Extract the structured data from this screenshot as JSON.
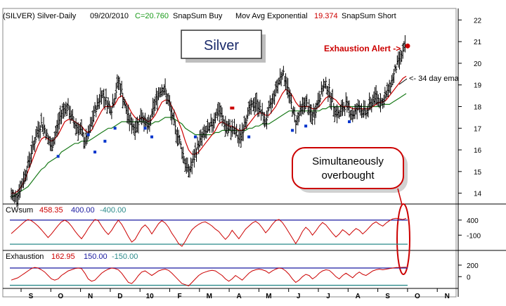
{
  "header": {
    "symbol": "(SILVER) Silver-Daily",
    "date": "09/20/2010",
    "close": "C=20.760",
    "study1": "SnapSum Buy",
    "study2": "Mov Avg Exponential",
    "ema_value": "19.374",
    "study3": "SnapSum Short"
  },
  "title_box": {
    "text": "Silver"
  },
  "annotations": {
    "exhaustion_alert": "Exhaustion Alert ->",
    "ema_label": "<- 34 day ema",
    "callout_line1": "Simultaneously",
    "callout_line2": "overbought"
  },
  "colors": {
    "price_bars": "#000000",
    "ema_fast": "#cc0000",
    "ema_34": "#1a7a1a",
    "buy_marker": "#0033cc",
    "indicator_line": "#cc0000",
    "upper_band": "#1a1aa0",
    "lower_band": "#2a8a8a",
    "alert_text": "#cc0000",
    "callout_border": "#cc0000"
  },
  "chart_data": [
    {
      "type": "ohlc",
      "x_start": "2010-09-01",
      "ylim": [
        13.5,
        22.5
      ],
      "y_ticks": [
        14,
        15,
        16,
        17,
        18,
        19,
        20,
        21,
        22
      ],
      "months": [
        "S",
        "O",
        "N",
        "D",
        "10",
        "F",
        "M",
        "A",
        "M",
        "J",
        "J",
        "A",
        "S",
        "O",
        "N"
      ],
      "close_path": [
        13.9,
        13.8,
        14.0,
        14.3,
        14.8,
        15.3,
        15.9,
        16.4,
        16.9,
        17.2,
        17.0,
        16.5,
        16.1,
        16.6,
        17.2,
        17.7,
        18.0,
        17.9,
        17.5,
        17.2,
        17.0,
        16.8,
        16.4,
        16.6,
        17.2,
        17.8,
        18.2,
        18.6,
        18.4,
        18.1,
        17.9,
        18.5,
        19.2,
        18.7,
        18.0,
        17.5,
        17.2,
        17.0,
        17.3,
        17.6,
        17.3,
        17.0,
        17.6,
        18.2,
        18.6,
        18.9,
        18.7,
        18.2,
        17.6,
        17.0,
        16.6,
        16.0,
        15.4,
        15.0,
        15.3,
        15.8,
        16.3,
        16.6,
        16.8,
        16.9,
        17.2,
        17.6,
        17.8,
        17.5,
        17.1,
        16.9,
        17.0,
        16.8,
        16.5,
        16.8,
        17.4,
        17.8,
        18.0,
        18.2,
        18.0,
        17.6,
        17.3,
        17.8,
        18.3,
        18.8,
        19.2,
        19.6,
        19.2,
        18.6,
        17.9,
        17.3,
        17.6,
        18.0,
        18.2,
        17.8,
        17.5,
        17.9,
        18.4,
        18.8,
        19.0,
        18.7,
        18.2,
        17.8,
        17.6,
        17.9,
        18.1,
        17.9,
        17.6,
        17.8,
        18.0,
        17.8,
        17.7,
        18.0,
        18.3,
        18.5,
        18.3,
        18.2,
        18.5,
        18.9,
        19.3,
        19.8,
        20.2,
        20.5,
        20.8
      ],
      "ema_fast": [
        14.0,
        14.0,
        14.1,
        14.3,
        14.6,
        15.0,
        15.4,
        15.8,
        16.2,
        16.5,
        16.6,
        16.5,
        16.4,
        16.5,
        16.7,
        17.0,
        17.3,
        17.4,
        17.4,
        17.3,
        17.2,
        17.1,
        16.9,
        16.8,
        16.9,
        17.2,
        17.5,
        17.8,
        18.0,
        18.0,
        18.0,
        18.1,
        18.4,
        18.5,
        18.3,
        18.0,
        17.7,
        17.5,
        17.4,
        17.5,
        17.4,
        17.3,
        17.4,
        17.6,
        17.9,
        18.2,
        18.3,
        18.3,
        18.0,
        17.7,
        17.3,
        16.9,
        16.4,
        16.0,
        15.8,
        15.8,
        15.9,
        16.1,
        16.3,
        16.5,
        16.7,
        16.9,
        17.2,
        17.3,
        17.2,
        17.1,
        17.1,
        17.0,
        16.9,
        16.9,
        17.0,
        17.2,
        17.4,
        17.6,
        17.7,
        17.7,
        17.6,
        17.6,
        17.8,
        18.0,
        18.3,
        18.6,
        18.8,
        18.7,
        18.5,
        18.2,
        18.0,
        18.0,
        18.0,
        18.0,
        17.9,
        17.9,
        18.0,
        18.2,
        18.4,
        18.5,
        18.4,
        18.3,
        18.1,
        18.0,
        18.0,
        18.0,
        17.9,
        17.9,
        17.9,
        17.9,
        17.9,
        17.9,
        18.0,
        18.1,
        18.2,
        18.2,
        18.3,
        18.5,
        18.7,
        18.9,
        19.1,
        19.3,
        19.4
      ],
      "ema_34": [
        13.8,
        13.9,
        14.0,
        14.1,
        14.2,
        14.3,
        14.5,
        14.7,
        14.9,
        15.1,
        15.2,
        15.4,
        15.5,
        15.6,
        15.7,
        15.9,
        16.0,
        16.1,
        16.2,
        16.3,
        16.3,
        16.4,
        16.4,
        16.4,
        16.5,
        16.6,
        16.7,
        16.8,
        16.9,
        17.0,
        17.0,
        17.1,
        17.2,
        17.3,
        17.3,
        17.3,
        17.3,
        17.3,
        17.3,
        17.3,
        17.3,
        17.2,
        17.2,
        17.3,
        17.3,
        17.4,
        17.5,
        17.5,
        17.5,
        17.4,
        17.3,
        17.2,
        17.0,
        16.9,
        16.8,
        16.7,
        16.7,
        16.7,
        16.7,
        16.7,
        16.7,
        16.8,
        16.8,
        16.9,
        16.9,
        16.9,
        16.9,
        16.9,
        16.9,
        16.9,
        16.9,
        17.0,
        17.0,
        17.1,
        17.1,
        17.2,
        17.2,
        17.2,
        17.3,
        17.4,
        17.5,
        17.6,
        17.7,
        17.8,
        17.8,
        17.8,
        17.8,
        17.8,
        17.8,
        17.8,
        17.8,
        17.8,
        17.8,
        17.9,
        17.9,
        18.0,
        18.0,
        18.0,
        18.0,
        18.0,
        18.0,
        18.0,
        18.0,
        18.0,
        18.0,
        18.0,
        18.0,
        18.0,
        18.0,
        18.0,
        18.0,
        18.1,
        18.1,
        18.1,
        18.2,
        18.3,
        18.4,
        18.5,
        18.6
      ],
      "buy_markers": [
        {
          "index": 14,
          "value": 15.7
        },
        {
          "index": 23,
          "value": 16.7
        },
        {
          "index": 25,
          "value": 15.9
        },
        {
          "index": 28,
          "value": 16.4
        },
        {
          "index": 31,
          "value": 17.0
        },
        {
          "index": 40,
          "value": 17.0
        },
        {
          "index": 42,
          "value": 16.6
        },
        {
          "index": 55,
          "value": 16.6
        },
        {
          "index": 71,
          "value": 16.6
        },
        {
          "index": 84,
          "value": 16.9
        },
        {
          "index": 88,
          "value": 17.1
        },
        {
          "index": 101,
          "value": 17.3
        }
      ],
      "short_markers": [
        {
          "index": 66,
          "value": 17.9
        }
      ],
      "alert_marker": {
        "index": 118,
        "value": 20.8
      }
    },
    {
      "type": "line",
      "name": "CWsum",
      "last_value": "458.35",
      "upper_band": "400.00",
      "lower_band": "-400.00",
      "y_ticks": [
        400,
        -100
      ],
      "values": [
        -50,
        50,
        150,
        250,
        350,
        420,
        380,
        300,
        200,
        80,
        -50,
        -180,
        -60,
        80,
        220,
        340,
        400,
        330,
        200,
        40,
        -100,
        -220,
        -60,
        120,
        280,
        420,
        380,
        200,
        40,
        -80,
        60,
        240,
        400,
        260,
        60,
        -150,
        -330,
        -240,
        -40,
        140,
        240,
        120,
        -60,
        110,
        280,
        380,
        300,
        160,
        -40,
        -200,
        -380,
        -470,
        -300,
        -100,
        80,
        180,
        260,
        320,
        340,
        280,
        200,
        100,
        20,
        -120,
        -240,
        -120,
        60,
        -80,
        -220,
        -60,
        100,
        200,
        300,
        360,
        280,
        140,
        -20,
        100,
        260,
        380,
        420,
        320,
        160,
        -20,
        -200,
        -380,
        -200,
        20,
        160,
        60,
        -100,
        40,
        200,
        320,
        240,
        100,
        -40,
        -160,
        -60,
        80,
        0,
        -100,
        20,
        120,
        60,
        -60,
        40,
        160,
        280,
        340,
        260,
        200,
        300,
        380,
        440,
        460,
        440,
        420,
        458
      ]
    },
    {
      "type": "line",
      "name": "Exhaustion",
      "last_value": "162.95",
      "upper_band": "150.00",
      "lower_band": "-150.00",
      "y_ticks": [
        200,
        0
      ],
      "values": [
        -60,
        -40,
        -20,
        20,
        60,
        100,
        140,
        160,
        150,
        120,
        80,
        20,
        -40,
        -60,
        -40,
        20,
        60,
        100,
        120,
        140,
        150,
        140,
        60,
        -40,
        -80,
        -60,
        0,
        60,
        100,
        130,
        150,
        140,
        120,
        60,
        -20,
        -100,
        -120,
        -60,
        20,
        80,
        100,
        60,
        20,
        60,
        100,
        120,
        130,
        110,
        60,
        0,
        -60,
        -120,
        -140,
        -160,
        -100,
        -40,
        20,
        60,
        80,
        100,
        110,
        100,
        60,
        20,
        -40,
        -80,
        -40,
        20,
        -20,
        -60,
        0,
        60,
        100,
        120,
        130,
        120,
        100,
        60,
        100,
        130,
        150,
        140,
        100,
        40,
        -40,
        -100,
        -60,
        0,
        40,
        20,
        -40,
        0,
        60,
        100,
        120,
        110,
        60,
        0,
        -40,
        20,
        60,
        20,
        -20,
        40,
        80,
        40,
        20,
        60,
        100,
        120,
        130,
        120,
        130,
        140,
        150,
        160,
        160,
        162,
        163
      ]
    }
  ]
}
